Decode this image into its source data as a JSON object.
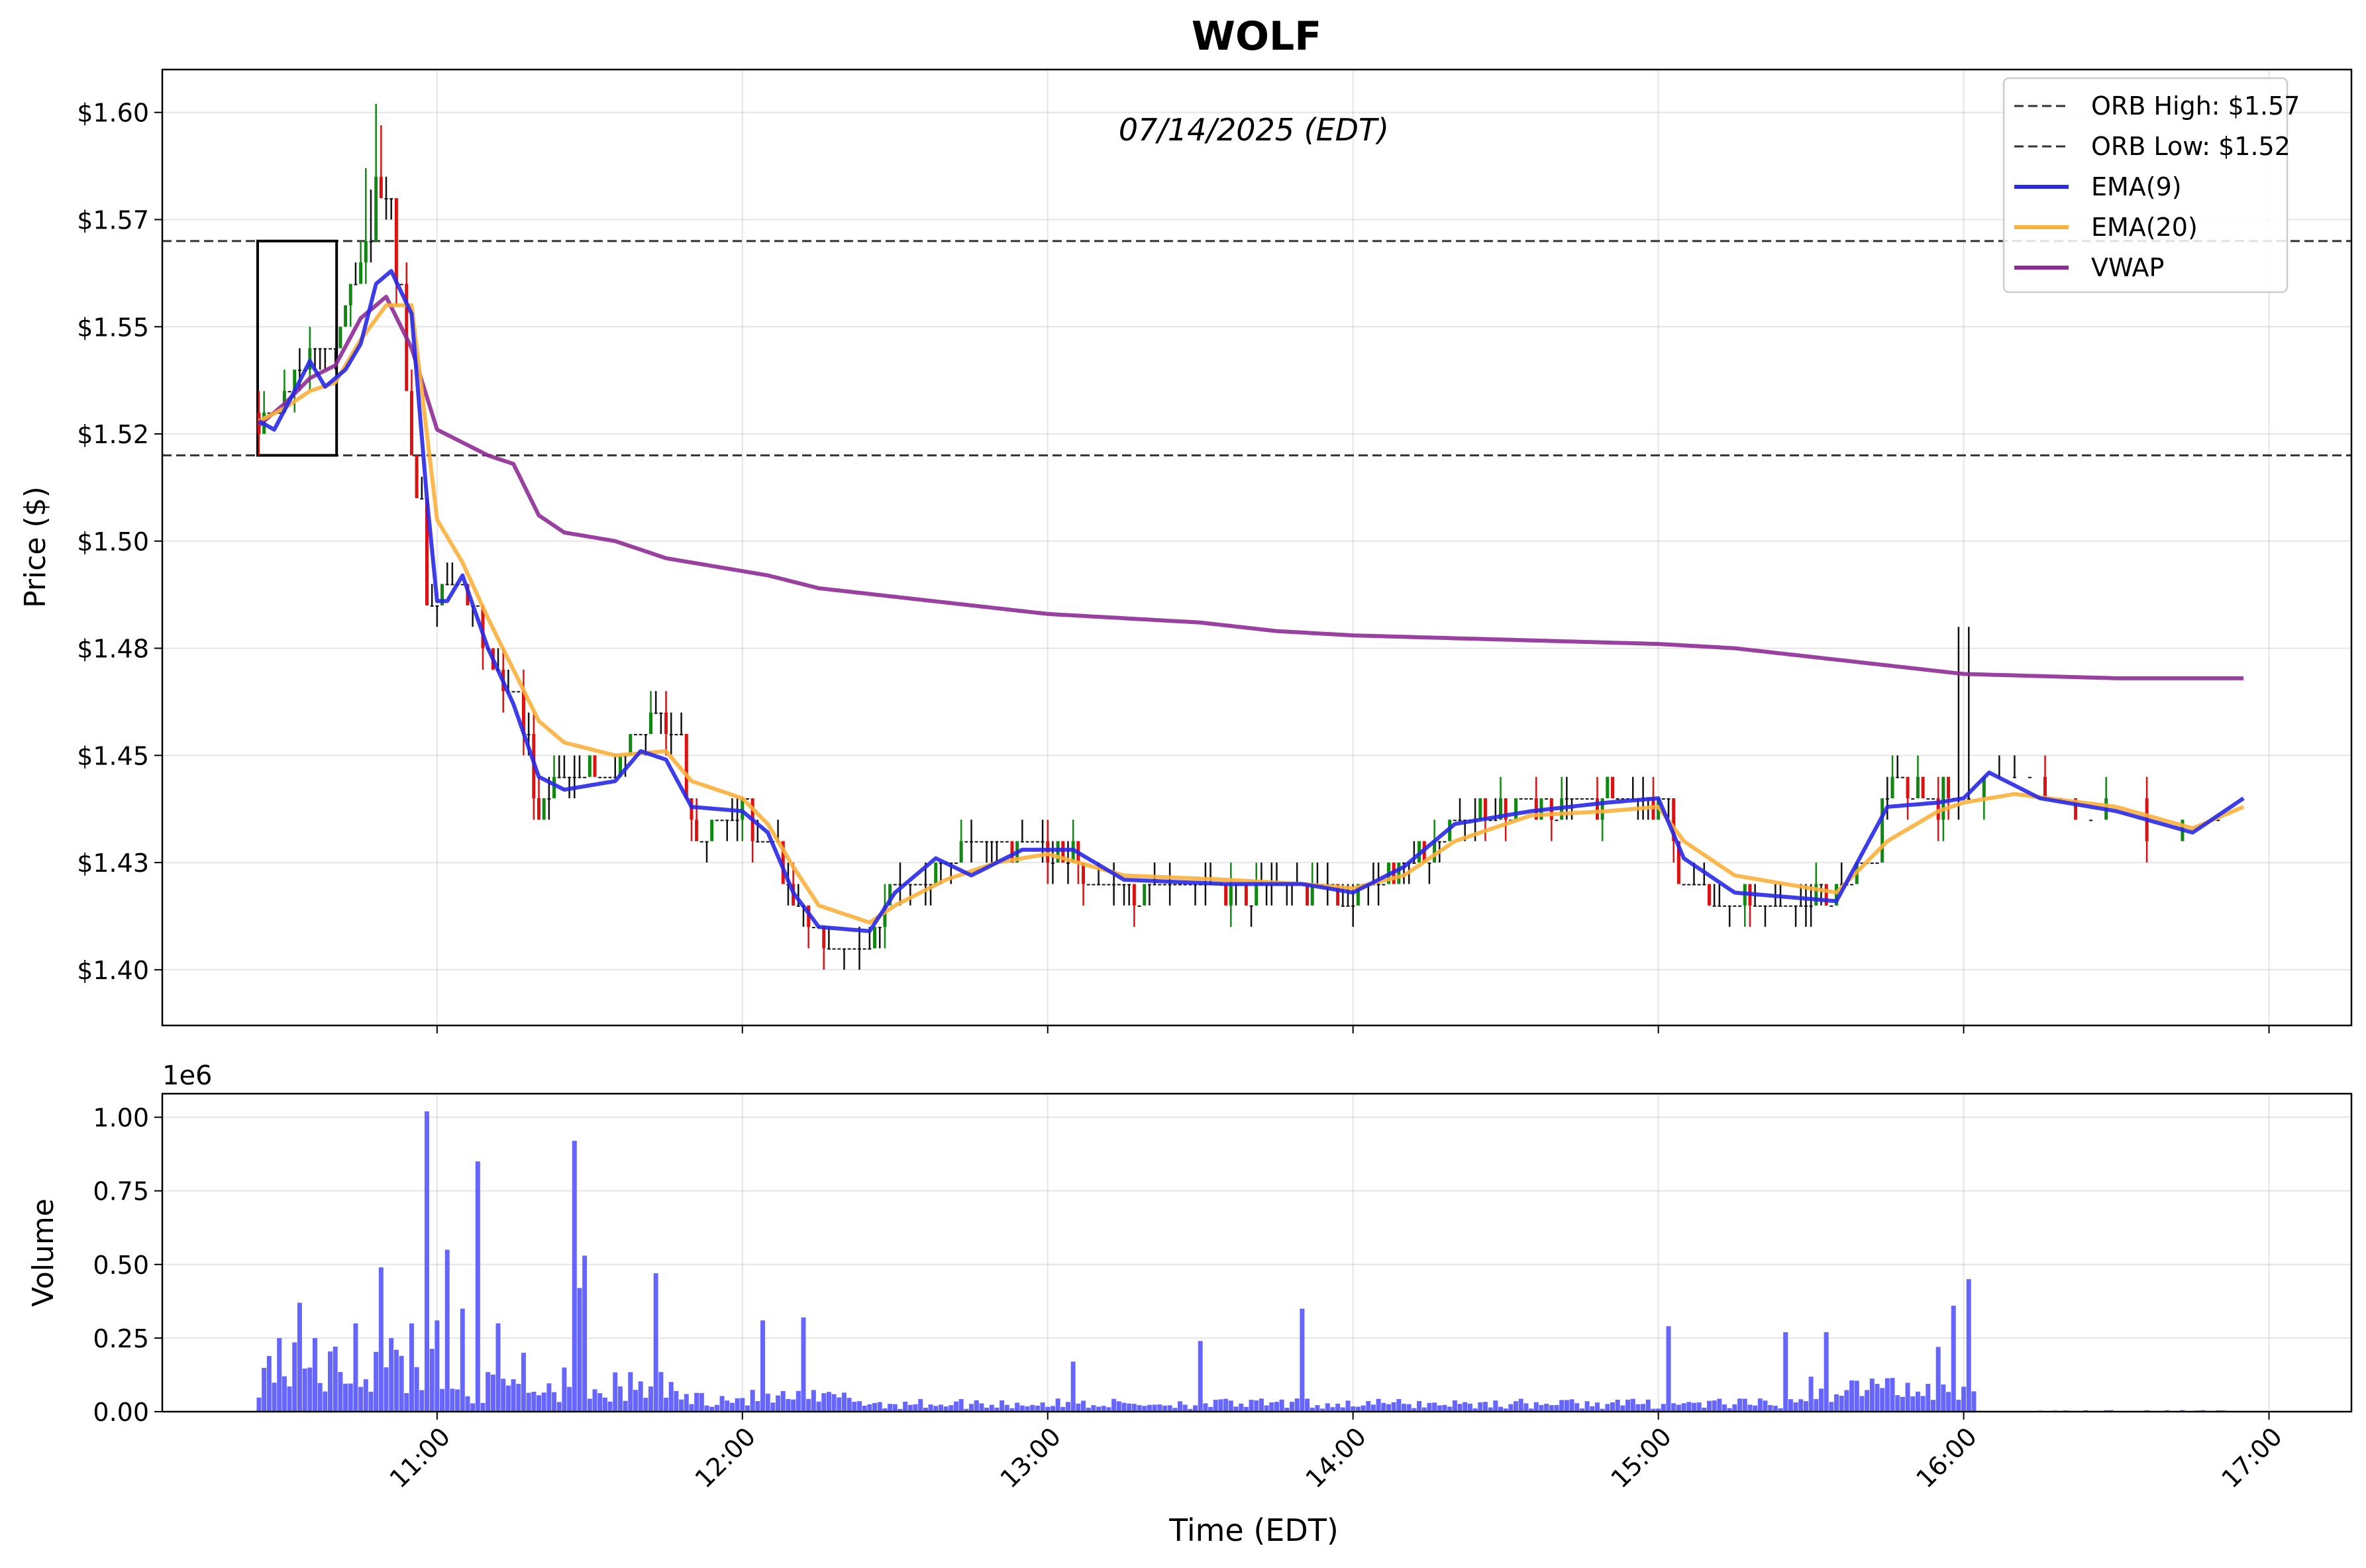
{
  "figure": {
    "title": "WOLF",
    "date_label": "07/14/2025 (EDT)"
  },
  "chart_data": [
    {
      "type": "candlestick",
      "panel": "price",
      "ylabel": "Price ($)",
      "ylim": [
        1.387,
        1.61
      ],
      "y_ticks": [
        1.4,
        1.425,
        1.45,
        1.475,
        1.5,
        1.525,
        1.55,
        1.575,
        1.6
      ],
      "y_tick_labels": [
        "$1.40",
        "$1.43",
        "$1.45",
        "$1.48",
        "$1.50",
        "$1.52",
        "$1.55",
        "$1.57",
        "$1.60"
      ],
      "xlim_hours": [
        10.1,
        17.27
      ],
      "x_ticks": [
        11,
        12,
        13,
        14,
        15,
        16,
        17
      ],
      "x_tick_labels": [
        "11:00",
        "12:00",
        "13:00",
        "14:00",
        "15:00",
        "16:00",
        "17:00"
      ],
      "grid": true,
      "legend_position": "top-right",
      "orb_box": {
        "start": "10:25",
        "end": "10:40",
        "high": 1.57,
        "low": 1.52
      },
      "legend": [
        {
          "label": "ORB High: $1.57",
          "color": "#333333",
          "style": "dashed",
          "value": 1.57
        },
        {
          "label": "ORB Low: $1.52",
          "color": "#333333",
          "style": "dashed",
          "value": 1.52
        },
        {
          "label": "EMA(9)",
          "color": "#2828e8",
          "style": "solid"
        },
        {
          "label": "EMA(20)",
          "color": "#fbb03b",
          "style": "solid"
        },
        {
          "label": "VWAP",
          "color": "#8e2b96",
          "style": "solid"
        }
      ],
      "colors": {
        "up": "#118811",
        "down": "#dd1111",
        "neutral": "#111111"
      },
      "price_keypoints": [
        [
          "10:25",
          1.53
        ],
        [
          "10:30",
          1.53
        ],
        [
          "10:35",
          1.545
        ],
        [
          "10:40",
          1.545
        ],
        [
          "10:45",
          1.565
        ],
        [
          "10:48",
          1.585
        ],
        [
          "10:53",
          1.555
        ],
        [
          "10:55",
          1.52
        ],
        [
          "10:58",
          1.49
        ],
        [
          "11:00",
          1.485
        ],
        [
          "11:05",
          1.49
        ],
        [
          "11:10",
          1.47
        ],
        [
          "11:15",
          1.465
        ],
        [
          "11:20",
          1.435
        ],
        [
          "11:25",
          1.445
        ],
        [
          "11:35",
          1.445
        ],
        [
          "11:40",
          1.46
        ],
        [
          "11:45",
          1.455
        ],
        [
          "11:50",
          1.435
        ],
        [
          "12:00",
          1.435
        ],
        [
          "12:05",
          1.43
        ],
        [
          "12:10",
          1.415
        ],
        [
          "12:15",
          1.405
        ],
        [
          "12:25",
          1.405
        ],
        [
          "12:30",
          1.42
        ],
        [
          "12:40",
          1.425
        ],
        [
          "12:50",
          1.43
        ],
        [
          "13:00",
          1.43
        ],
        [
          "13:10",
          1.42
        ],
        [
          "13:30",
          1.42
        ],
        [
          "13:45",
          1.42
        ],
        [
          "14:00",
          1.415
        ],
        [
          "14:10",
          1.425
        ],
        [
          "14:20",
          1.435
        ],
        [
          "14:40",
          1.44
        ],
        [
          "15:00",
          1.44
        ],
        [
          "15:05",
          1.42
        ],
        [
          "15:15",
          1.415
        ],
        [
          "15:30",
          1.415
        ],
        [
          "15:40",
          1.425
        ],
        [
          "15:45",
          1.445
        ],
        [
          "15:55",
          1.44
        ],
        [
          "16:00",
          1.44
        ],
        [
          "16:05",
          1.445
        ],
        [
          "16:15",
          1.44
        ],
        [
          "16:30",
          1.435
        ],
        [
          "16:45",
          1.43
        ],
        [
          "16:55",
          1.44
        ]
      ],
      "ema9_keypoints": [
        [
          "10:25",
          1.528
        ],
        [
          "10:28",
          1.526
        ],
        [
          "10:32",
          1.535
        ],
        [
          "10:35",
          1.542
        ],
        [
          "10:38",
          1.536
        ],
        [
          "10:42",
          1.54
        ],
        [
          "10:45",
          1.546
        ],
        [
          "10:48",
          1.56
        ],
        [
          "10:51",
          1.563
        ],
        [
          "10:55",
          1.553
        ],
        [
          "10:58",
          1.51
        ],
        [
          "11:00",
          1.486
        ],
        [
          "11:02",
          1.486
        ],
        [
          "11:05",
          1.492
        ],
        [
          "11:10",
          1.475
        ],
        [
          "11:15",
          1.462
        ],
        [
          "11:20",
          1.445
        ],
        [
          "11:25",
          1.442
        ],
        [
          "11:35",
          1.444
        ],
        [
          "11:40",
          1.451
        ],
        [
          "11:45",
          1.449
        ],
        [
          "11:50",
          1.438
        ],
        [
          "12:00",
          1.437
        ],
        [
          "12:05",
          1.432
        ],
        [
          "12:10",
          1.418
        ],
        [
          "12:15",
          1.41
        ],
        [
          "12:25",
          1.409
        ],
        [
          "12:30",
          1.418
        ],
        [
          "12:38",
          1.426
        ],
        [
          "12:45",
          1.422
        ],
        [
          "12:55",
          1.428
        ],
        [
          "13:05",
          1.428
        ],
        [
          "13:15",
          1.421
        ],
        [
          "13:35",
          1.42
        ],
        [
          "13:50",
          1.42
        ],
        [
          "14:00",
          1.418
        ],
        [
          "14:10",
          1.424
        ],
        [
          "14:20",
          1.434
        ],
        [
          "14:35",
          1.437
        ],
        [
          "14:50",
          1.439
        ],
        [
          "15:00",
          1.44
        ],
        [
          "15:05",
          1.426
        ],
        [
          "15:15",
          1.418
        ],
        [
          "15:35",
          1.416
        ],
        [
          "15:45",
          1.438
        ],
        [
          "15:55",
          1.439
        ],
        [
          "16:00",
          1.44
        ],
        [
          "16:05",
          1.446
        ],
        [
          "16:15",
          1.44
        ],
        [
          "16:30",
          1.437
        ],
        [
          "16:45",
          1.432
        ],
        [
          "16:55",
          1.44
        ]
      ],
      "ema20_keypoints": [
        [
          "10:25",
          1.528
        ],
        [
          "10:30",
          1.531
        ],
        [
          "10:35",
          1.535
        ],
        [
          "10:40",
          1.537
        ],
        [
          "10:45",
          1.547
        ],
        [
          "10:50",
          1.555
        ],
        [
          "10:55",
          1.555
        ],
        [
          "11:00",
          1.505
        ],
        [
          "11:05",
          1.495
        ],
        [
          "11:10",
          1.482
        ],
        [
          "11:15",
          1.47
        ],
        [
          "11:20",
          1.458
        ],
        [
          "11:25",
          1.453
        ],
        [
          "11:35",
          1.45
        ],
        [
          "11:45",
          1.451
        ],
        [
          "11:50",
          1.444
        ],
        [
          "12:00",
          1.44
        ],
        [
          "12:05",
          1.434
        ],
        [
          "12:10",
          1.424
        ],
        [
          "12:15",
          1.415
        ],
        [
          "12:25",
          1.411
        ],
        [
          "12:30",
          1.415
        ],
        [
          "12:40",
          1.421
        ],
        [
          "12:50",
          1.425
        ],
        [
          "13:00",
          1.427
        ],
        [
          "13:15",
          1.422
        ],
        [
          "13:35",
          1.421
        ],
        [
          "13:50",
          1.42
        ],
        [
          "14:00",
          1.419
        ],
        [
          "14:10",
          1.422
        ],
        [
          "14:20",
          1.43
        ],
        [
          "14:35",
          1.436
        ],
        [
          "14:50",
          1.437
        ],
        [
          "15:00",
          1.438
        ],
        [
          "15:05",
          1.43
        ],
        [
          "15:15",
          1.422
        ],
        [
          "15:35",
          1.418
        ],
        [
          "15:45",
          1.43
        ],
        [
          "15:55",
          1.437
        ],
        [
          "16:00",
          1.439
        ],
        [
          "16:10",
          1.441
        ],
        [
          "16:30",
          1.438
        ],
        [
          "16:45",
          1.433
        ],
        [
          "16:55",
          1.438
        ]
      ],
      "vwap_keypoints": [
        [
          "10:25",
          1.527
        ],
        [
          "10:30",
          1.532
        ],
        [
          "10:35",
          1.538
        ],
        [
          "10:40",
          1.541
        ],
        [
          "10:45",
          1.552
        ],
        [
          "10:50",
          1.557
        ],
        [
          "10:55",
          1.545
        ],
        [
          "11:00",
          1.526
        ],
        [
          "11:05",
          1.523
        ],
        [
          "11:10",
          1.52
        ],
        [
          "11:15",
          1.518
        ],
        [
          "11:20",
          1.506
        ],
        [
          "11:25",
          1.502
        ],
        [
          "11:35",
          1.5
        ],
        [
          "11:45",
          1.496
        ],
        [
          "11:55",
          1.494
        ],
        [
          "12:05",
          1.492
        ],
        [
          "12:15",
          1.489
        ],
        [
          "12:30",
          1.487
        ],
        [
          "12:45",
          1.485
        ],
        [
          "13:00",
          1.483
        ],
        [
          "13:15",
          1.482
        ],
        [
          "13:30",
          1.481
        ],
        [
          "13:45",
          1.479
        ],
        [
          "14:00",
          1.478
        ],
        [
          "14:30",
          1.477
        ],
        [
          "15:00",
          1.476
        ],
        [
          "15:15",
          1.475
        ],
        [
          "15:30",
          1.473
        ],
        [
          "15:45",
          1.471
        ],
        [
          "16:00",
          1.469
        ],
        [
          "16:30",
          1.468
        ],
        [
          "16:55",
          1.468
        ]
      ]
    },
    {
      "type": "bar",
      "panel": "volume",
      "ylabel": "Volume",
      "xlabel": "Time (EDT)",
      "offset_label": "1e6",
      "ylim": [
        0,
        1.08
      ],
      "y_ticks": [
        0,
        0.25,
        0.5,
        0.75,
        1.0
      ],
      "y_tick_labels": [
        "0.00",
        "0.25",
        "0.50",
        "0.75",
        "1.00"
      ],
      "x_ticks": [
        11,
        12,
        13,
        14,
        15,
        16,
        17
      ],
      "x_tick_labels": [
        "11:00",
        "12:00",
        "13:00",
        "14:00",
        "15:00",
        "16:00",
        "17:00"
      ],
      "grid": true,
      "bar_color": "#5555ff",
      "volume_spikes_millions": [
        [
          "10:29",
          0.25
        ],
        [
          "10:33",
          0.37
        ],
        [
          "10:36",
          0.25
        ],
        [
          "10:44",
          0.3
        ],
        [
          "10:49",
          0.49
        ],
        [
          "10:51",
          0.25
        ],
        [
          "10:55",
          0.3
        ],
        [
          "10:58",
          1.02
        ],
        [
          "11:00",
          0.31
        ],
        [
          "11:02",
          0.55
        ],
        [
          "11:05",
          0.35
        ],
        [
          "11:08",
          0.85
        ],
        [
          "11:12",
          0.3
        ],
        [
          "11:17",
          0.2
        ],
        [
          "11:25",
          0.15
        ],
        [
          "11:27",
          0.92
        ],
        [
          "11:28",
          0.42
        ],
        [
          "11:29",
          0.53
        ],
        [
          "11:43",
          0.47
        ],
        [
          "12:04",
          0.31
        ],
        [
          "12:12",
          0.32
        ],
        [
          "13:05",
          0.17
        ],
        [
          "13:30",
          0.24
        ],
        [
          "13:50",
          0.35
        ],
        [
          "15:02",
          0.29
        ],
        [
          "15:25",
          0.27
        ],
        [
          "15:33",
          0.27
        ],
        [
          "15:55",
          0.22
        ],
        [
          "15:58",
          0.36
        ],
        [
          "16:01",
          0.45
        ]
      ]
    }
  ]
}
